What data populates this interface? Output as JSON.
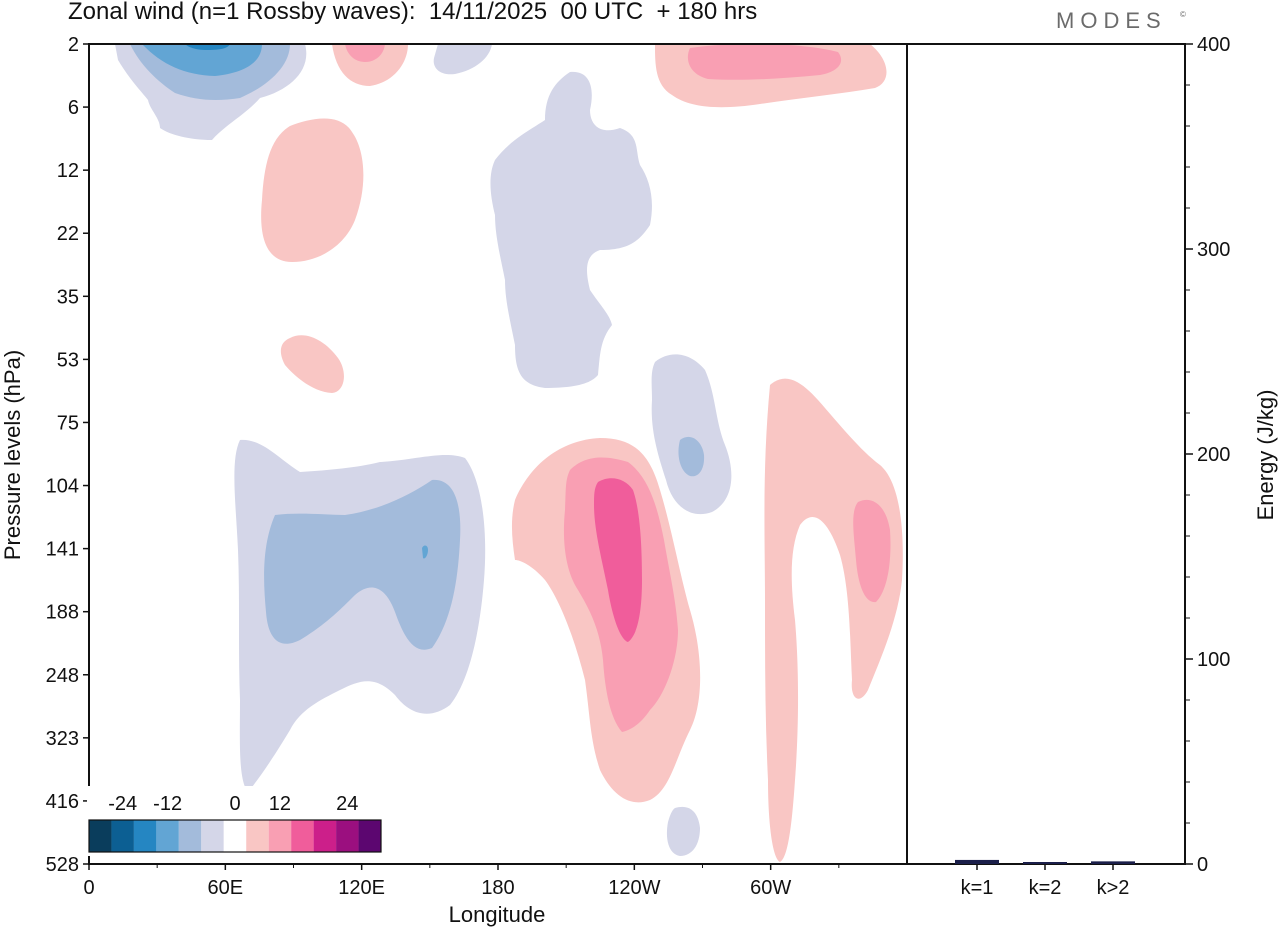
{
  "header": {
    "title": "Zonal wind (n=1 Rossby waves):  14/11/2025  00 UTC  + 180 hrs",
    "brand": "MODES",
    "brand_mark": "©"
  },
  "chart_data": [
    {
      "type": "heatmap",
      "title": "Zonal wind (n=1 Rossby waves):  14/11/2025  00 UTC  + 180 hrs",
      "xlabel": "Longitude",
      "ylabel": "Pressure levels (hPa)",
      "x_ticks": [
        "0",
        "60E",
        "120E",
        "180",
        "120W",
        "60W"
      ],
      "x_tick_values": [
        0,
        60,
        120,
        180,
        240,
        300
      ],
      "xlim": [
        0,
        360
      ],
      "y_ticks": [
        "2",
        "6",
        "12",
        "22",
        "35",
        "53",
        "75",
        "104",
        "141",
        "188",
        "248",
        "323",
        "416",
        "528"
      ],
      "y_reversed": true,
      "colorbar": {
        "labels": [
          "-24",
          "-12",
          "0",
          "12",
          "24"
        ],
        "levels": [
          -28,
          -24,
          -20,
          -16,
          -12,
          -8,
          -4,
          4,
          8,
          12,
          16,
          20,
          24,
          28
        ],
        "colors": [
          "#0a3d5c",
          "#0c5f93",
          "#2586c2",
          "#62a5d4",
          "#a3bbdb",
          "#d4d6e8",
          "#ffffff",
          "#f9c6c4",
          "#f99fb3",
          "#f05d9b",
          "#cc1f8a",
          "#9b0f7f",
          "#5c0670"
        ],
        "location": "bottom-left"
      },
      "regions": [
        {
          "name": "stratosphere-negative-west",
          "lon_center": 45,
          "pressure_center": 3,
          "min_value": -20
        },
        {
          "name": "stratosphere-positive-120e",
          "lon_center": 121,
          "pressure_center": 2.5,
          "max_value": 8
        },
        {
          "name": "stratosphere-positive-east",
          "lon_center": 265,
          "pressure_center": 3,
          "max_value": 8
        },
        {
          "name": "positive-60e-upper",
          "lon_center": 98,
          "pressure_center": 18,
          "max_value": 4
        },
        {
          "name": "negative-central-column",
          "lon_center": 205,
          "pressure_center": 25,
          "min_value": -4
        },
        {
          "name": "positive-60e-mid",
          "lon_center": 95,
          "pressure_center": 55,
          "max_value": 4
        },
        {
          "name": "negative-tropospheric-eastern-hemisphere",
          "lon_center": 100,
          "pressure_center": 160,
          "min_value": -12
        },
        {
          "name": "positive-tropospheric-120w",
          "lon_center": 237,
          "pressure_center": 170,
          "max_value": 12
        },
        {
          "name": "negative-100w",
          "lon_center": 262,
          "pressure_center": 100,
          "min_value": -8
        },
        {
          "name": "positive-tropospheric-60w-east",
          "lon_center": 310,
          "pressure_center": 180,
          "max_value": 8
        },
        {
          "name": "negative-lower-100w",
          "lon_center": 260,
          "pressure_center": 470,
          "min_value": -4
        }
      ]
    },
    {
      "type": "bar",
      "ylabel": "Energy (J/kg)",
      "categories": [
        "k=1",
        "k=2",
        "k>2"
      ],
      "values": [
        1.5,
        0.2,
        0.8
      ],
      "ylim": [
        0,
        400
      ],
      "y_ticks": [
        "0",
        "100",
        "200",
        "300",
        "400"
      ],
      "bar_color": "#1b1f4a"
    }
  ]
}
